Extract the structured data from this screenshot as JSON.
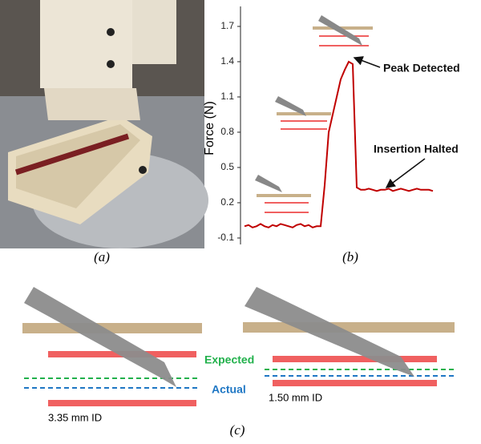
{
  "chart_data": {
    "type": "line",
    "y_label": "Force (N)",
    "ylim": [
      -0.15,
      1.8
    ],
    "yticks": [
      -0.1,
      0.2,
      0.5,
      0.8,
      1.1,
      1.4,
      1.7
    ],
    "series": [
      {
        "color": "#c00000",
        "values": [
          0.0,
          0.01,
          -0.01,
          0.0,
          0.02,
          0.0,
          -0.01,
          0.01,
          0.0,
          0.02,
          0.01,
          0.0,
          -0.01,
          0.01,
          0.02,
          0.0,
          0.01,
          -0.01,
          0.0,
          0.0,
          0.35,
          0.8,
          0.95,
          1.1,
          1.25,
          1.33,
          1.4,
          1.38,
          0.33,
          0.31,
          0.31,
          0.32,
          0.31,
          0.3,
          0.31,
          0.31,
          0.32,
          0.3,
          0.31,
          0.32,
          0.31,
          0.3,
          0.31,
          0.32,
          0.31,
          0.31,
          0.31,
          0.3
        ]
      }
    ],
    "annotations": [
      "Peak Detected",
      "Insertion Halted"
    ]
  },
  "panel_labels": [
    "(a)",
    "(b)",
    "(c)"
  ],
  "diagram": {
    "expected": "Expected",
    "actual": "Actual",
    "left_label": "3.35 mm ID",
    "right_label": "1.50 mm ID"
  }
}
